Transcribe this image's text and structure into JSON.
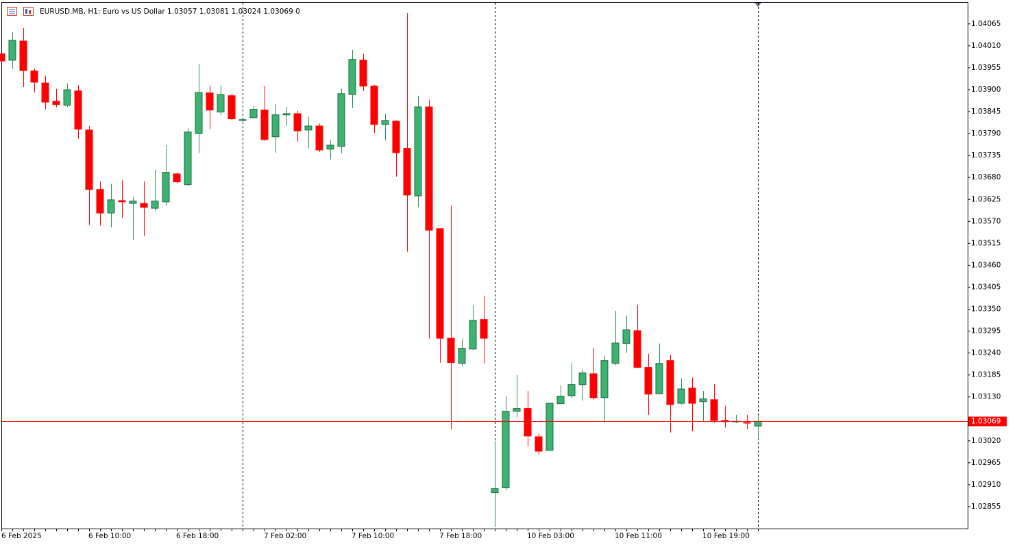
{
  "chart_data": {
    "type": "candlestick",
    "title": "EURUSD.MB, H1:  Euro vs US Dollar  1.03057 1.03081 1.03024 1.03069  0",
    "categories": [
      "6 Feb 2025",
      null,
      null,
      null,
      null,
      null,
      null,
      null,
      "6 Feb 10:00",
      null,
      null,
      null,
      null,
      null,
      null,
      null,
      "6 Feb 18:00",
      null,
      null,
      null,
      null,
      null,
      null,
      null,
      "7 Feb 02:00",
      null,
      null,
      null,
      null,
      null,
      null,
      null,
      "7 Feb 10:00",
      null,
      null,
      null,
      null,
      null,
      null,
      null,
      "7 Feb 18:00",
      null,
      null,
      null,
      null,
      null,
      null,
      null,
      "10 Feb 03:00",
      null,
      null,
      null,
      null,
      null,
      null,
      null,
      "10 Feb 11:00",
      null,
      null,
      null,
      null,
      null,
      null,
      null,
      "10 Feb 19:00",
      null,
      null,
      null,
      null,
      null
    ],
    "open": [
      1.0399,
      1.03974,
      1.04022,
      1.03947,
      1.03917,
      1.03871,
      1.03861,
      1.03897,
      1.03799,
      1.0365,
      1.03591,
      1.03622,
      1.03615,
      1.03615,
      1.03603,
      1.03619,
      1.03689,
      1.03662,
      1.0379,
      1.03892,
      1.03844,
      1.03885,
      1.03823,
      1.0383,
      1.03849,
      1.03782,
      1.03837,
      1.0384,
      1.03799,
      1.03809,
      1.03751,
      1.03758,
      1.03888,
      1.03974,
      1.03909,
      1.03813,
      1.03821,
      1.03753,
      1.03634,
      1.03857,
      1.03552,
      1.03277,
      1.03214,
      1.0325,
      1.03324,
      1.0289,
      1.02902,
      1.03094,
      1.03101,
      1.0303,
      1.02996,
      1.03113,
      1.03133,
      1.03161,
      1.03188,
      1.03128,
      1.03214,
      1.03264,
      1.03296,
      1.03204,
      1.03138,
      1.03221,
      1.03114,
      1.03152,
      1.03118,
      1.03123,
      1.03071,
      1.03068,
      1.03066,
      1.03057
    ],
    "high": [
      1.03991,
      1.04044,
      1.04055,
      1.03953,
      1.03935,
      1.03902,
      1.03916,
      1.03912,
      1.03809,
      1.0367,
      1.03664,
      1.03674,
      1.03631,
      1.0367,
      1.037,
      1.03761,
      1.03693,
      1.03804,
      1.03965,
      1.03911,
      1.03912,
      1.0389,
      1.03825,
      1.03859,
      1.03909,
      1.03864,
      1.03857,
      1.03847,
      1.03832,
      1.03815,
      1.03773,
      1.03902,
      1.04,
      1.0399,
      1.03912,
      1.0384,
      1.03823,
      1.04092,
      1.03885,
      1.03875,
      1.03552,
      1.0361,
      1.03276,
      1.0336,
      1.03384,
      1.0302,
      1.03133,
      1.03185,
      1.03145,
      1.03039,
      1.03116,
      1.03159,
      1.03216,
      1.03198,
      1.03253,
      1.03233,
      1.03346,
      1.03334,
      1.03361,
      1.03238,
      1.03264,
      1.03236,
      1.03176,
      1.03178,
      1.03145,
      1.03162,
      1.03108,
      1.03085,
      1.03085,
      1.03081
    ],
    "low": [
      1.03971,
      1.03952,
      1.03907,
      1.03893,
      1.03851,
      1.03856,
      1.03857,
      1.03777,
      1.03561,
      1.03559,
      1.03555,
      1.03579,
      1.03524,
      1.03533,
      1.03597,
      1.0361,
      1.03665,
      1.03658,
      1.03741,
      1.03801,
      1.03837,
      1.03823,
      1.03816,
      1.03828,
      1.03772,
      1.03742,
      1.03809,
      1.0377,
      1.03753,
      1.03744,
      1.03725,
      1.03741,
      1.03854,
      1.03897,
      1.03792,
      1.03773,
      1.03682,
      1.03494,
      1.03605,
      1.03276,
      1.03216,
      1.03049,
      1.03207,
      1.03247,
      1.03214,
      1.02807,
      1.02896,
      1.03078,
      1.03006,
      1.02986,
      1.02996,
      1.03113,
      1.03128,
      1.0312,
      1.03123,
      1.03066,
      1.03209,
      1.03241,
      1.03202,
      1.03085,
      1.03137,
      1.03041,
      1.03111,
      1.03044,
      1.03068,
      1.03065,
      1.03053,
      1.03065,
      1.03049,
      1.03024
    ],
    "close": [
      1.03972,
      1.04024,
      1.03948,
      1.03919,
      1.03869,
      1.03863,
      1.039,
      1.03801,
      1.0365,
      1.03591,
      1.03624,
      1.03619,
      1.03621,
      1.03605,
      1.03621,
      1.03693,
      1.03669,
      1.03794,
      1.03893,
      1.03849,
      1.03888,
      1.03827,
      1.03825,
      1.03851,
      1.03775,
      1.03837,
      1.0384,
      1.03797,
      1.03809,
      1.03749,
      1.03761,
      1.0389,
      1.03976,
      1.03909,
      1.03813,
      1.03823,
      1.03742,
      1.03636,
      1.03857,
      1.03548,
      1.03277,
      1.03216,
      1.03252,
      1.03322,
      1.03277,
      1.029,
      1.03094,
      1.03101,
      1.03032,
      1.02994,
      1.03114,
      1.03132,
      1.03161,
      1.0319,
      1.03128,
      1.03221,
      1.03265,
      1.03298,
      1.03204,
      1.03137,
      1.03214,
      1.03111,
      1.0315,
      1.03114,
      1.03125,
      1.03071,
      1.03068,
      1.03069,
      1.03065,
      1.03069
    ],
    "up_color": "#3cb371",
    "down_color": "#ff0000",
    "last_price": 1.03069,
    "last_price_color": "#ff0000",
    "ylim": [
      1.028,
      1.04118
    ],
    "yticks": [
      1.04065,
      {
        "value": 1.0401,
        "label": "1.04010"
      },
      1.03955,
      {
        "value": 1.039,
        "label": "1.03900"
      },
      1.03845,
      {
        "value": 1.0379,
        "label": "1.03790"
      },
      1.03735,
      {
        "value": 1.0368,
        "label": "1.03680"
      },
      1.03625,
      {
        "value": 1.0357,
        "label": "1.03570"
      },
      1.03515,
      {
        "value": 1.0346,
        "label": "1.03460"
      },
      1.03405,
      {
        "value": 1.0335,
        "label": "1.03350"
      },
      1.03295,
      {
        "value": 1.0324,
        "label": "1.03240"
      },
      1.03185,
      {
        "value": 1.0313,
        "label": "1.03130"
      },
      {
        "value": 1.0302,
        "label": "1.03020"
      },
      1.02965,
      {
        "value": 1.0291,
        "label": "1.02910"
      },
      1.02855
    ]
  }
}
